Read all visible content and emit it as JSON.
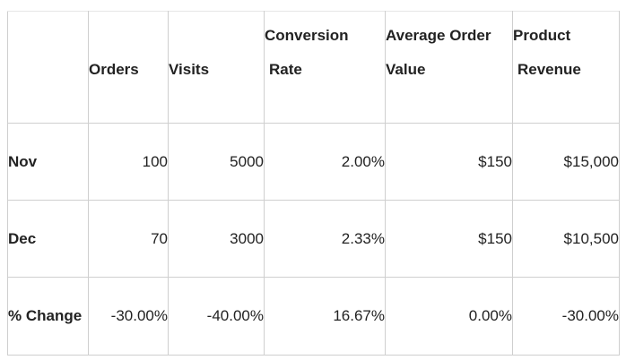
{
  "headers": [
    {
      "line1": "",
      "line2": ""
    },
    {
      "line1": "",
      "line2": "Orders"
    },
    {
      "line1": "",
      "line2": "Visits"
    },
    {
      "line1": "Conversion",
      "line2": "Rate"
    },
    {
      "line1": "Average Order",
      "line2": "Value"
    },
    {
      "line1": "Product",
      "line2": "Revenue"
    }
  ],
  "rows": [
    {
      "label": "Nov",
      "cells": [
        "100",
        "5000",
        "2.00%",
        "$150",
        "$15,000"
      ]
    },
    {
      "label": "Dec",
      "cells": [
        "70",
        "3000",
        "2.33%",
        "$150",
        "$10,500"
      ]
    },
    {
      "label": "% Change",
      "cells": [
        "-30.00%",
        "-40.00%",
        "16.67%",
        "0.00%",
        "-30.00%"
      ]
    }
  ]
}
